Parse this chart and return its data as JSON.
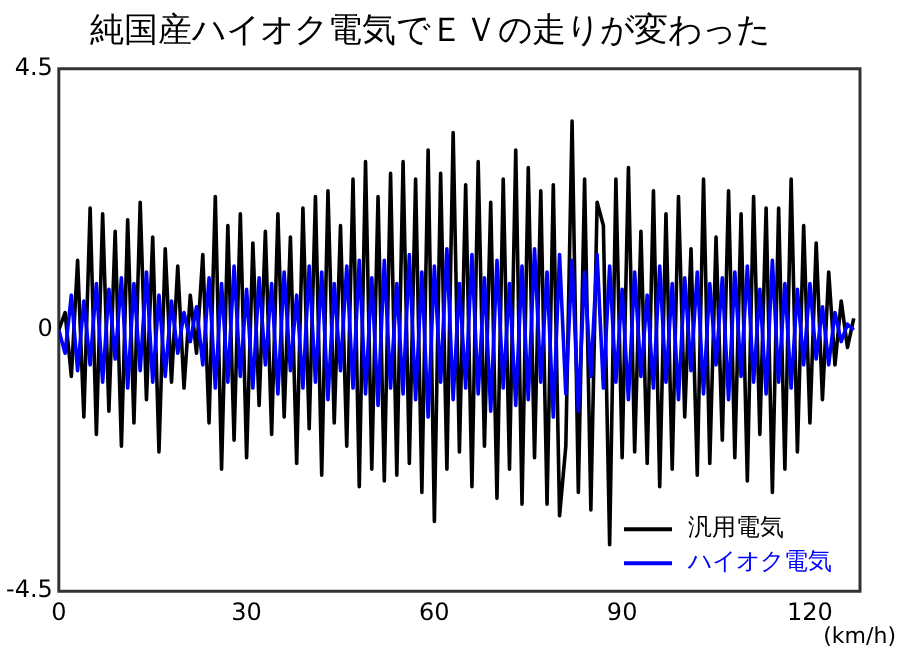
{
  "chart_data": {
    "type": "line",
    "title": "純国産ハイオク電気でＥＶの走りが変わった",
    "xlabel": "(km/h)",
    "x": [
      0,
      1,
      2,
      3,
      4,
      5,
      6,
      7,
      8,
      9,
      10,
      11,
      12,
      13,
      14,
      15,
      16,
      17,
      18,
      19,
      20,
      21,
      22,
      23,
      24,
      25,
      26,
      27,
      28,
      29,
      30,
      31,
      32,
      33,
      34,
      35,
      36,
      37,
      38,
      39,
      40,
      41,
      42,
      43,
      44,
      45,
      46,
      47,
      48,
      49,
      50,
      51,
      52,
      53,
      54,
      55,
      56,
      57,
      58,
      59,
      60,
      61,
      62,
      63,
      64,
      65,
      66,
      67,
      68,
      69,
      70,
      71,
      72,
      73,
      74,
      75,
      76,
      77,
      78,
      79,
      80,
      81,
      82,
      83,
      84,
      85,
      86,
      87,
      88,
      89,
      90,
      91,
      92,
      93,
      94,
      95,
      96,
      97,
      98,
      99,
      100,
      101,
      102,
      103,
      104,
      105,
      106,
      107,
      108,
      109,
      110,
      111,
      112,
      113,
      114,
      115,
      116,
      117,
      118,
      119,
      120,
      121,
      122,
      123,
      124,
      125,
      126,
      127
    ],
    "series": [
      {
        "name": "汎用電気",
        "color": "#000000",
        "values": [
          0,
          0.3,
          -0.8,
          1.2,
          -1.5,
          2.1,
          -1.8,
          2.0,
          -1.4,
          1.7,
          -2.0,
          1.9,
          -1.6,
          2.2,
          -1.2,
          1.6,
          -2.1,
          1.4,
          -0.9,
          1.1,
          -1.0,
          0.6,
          -0.4,
          1.3,
          -1.6,
          2.3,
          -2.4,
          1.8,
          -1.9,
          2.0,
          -2.2,
          1.5,
          -1.3,
          1.7,
          -1.8,
          2.0,
          -1.5,
          1.6,
          -2.3,
          2.1,
          -1.7,
          2.3,
          -2.5,
          2.4,
          -1.6,
          1.8,
          -2.0,
          2.6,
          -2.7,
          2.9,
          -2.4,
          2.3,
          -2.6,
          2.7,
          -2.5,
          2.9,
          -2.3,
          2.6,
          -2.8,
          3.1,
          -3.3,
          2.7,
          -2.4,
          3.4,
          -2.1,
          2.5,
          -2.7,
          2.9,
          -2.0,
          2.2,
          -2.9,
          2.6,
          -2.4,
          3.1,
          -3.0,
          2.8,
          -2.2,
          2.4,
          -3.0,
          2.5,
          -3.2,
          -2.0,
          3.6,
          -2.8,
          2.6,
          -3.1,
          2.2,
          1.8,
          -3.7,
          2.6,
          -2.2,
          2.8,
          -2.1,
          1.7,
          -2.3,
          2.4,
          -2.7,
          2.0,
          -2.4,
          2.3,
          -1.5,
          1.4,
          -2.5,
          2.6,
          -2.3,
          1.6,
          -1.9,
          2.4,
          -2.2,
          2.0,
          -2.6,
          2.3,
          -1.8,
          2.1,
          -2.8,
          2.1,
          -2.4,
          2.6,
          -2.1,
          1.8,
          -1.6,
          1.5,
          -1.2,
          1.0,
          -0.6,
          0.5,
          -0.3,
          0.2
        ]
      },
      {
        "name": "ハイオク電気",
        "color": "#0000ff",
        "values": [
          0,
          -0.4,
          0.6,
          -0.7,
          0.5,
          -0.6,
          0.8,
          -0.9,
          0.7,
          -0.5,
          0.9,
          -1.0,
          0.8,
          -0.7,
          1.0,
          -0.9,
          0.6,
          -0.8,
          0.5,
          -0.4,
          0.3,
          -0.2,
          0.4,
          -0.6,
          0.9,
          -1.0,
          0.8,
          -0.9,
          1.1,
          -0.8,
          0.7,
          -1.0,
          0.9,
          -0.6,
          0.8,
          -1.1,
          1.0,
          -0.7,
          0.6,
          -1.0,
          1.1,
          -0.9,
          1.0,
          -1.2,
          0.8,
          -0.7,
          1.1,
          -1.0,
          1.2,
          -1.1,
          0.9,
          -1.3,
          1.2,
          -1.0,
          0.8,
          -1.1,
          1.3,
          -1.2,
          1.0,
          -1.5,
          1.1,
          -0.9,
          1.4,
          -1.2,
          0.8,
          -1.0,
          1.3,
          -1.1,
          0.9,
          -1.4,
          1.2,
          -1.0,
          0.8,
          -1.3,
          1.1,
          -1.2,
          1.4,
          -0.9,
          1.0,
          -1.5,
          1.3,
          -1.1,
          1.2,
          -1.4,
          1.0,
          -0.8,
          1.3,
          -1.0,
          1.1,
          -0.9,
          0.7,
          -1.2,
          1.0,
          -0.8,
          0.6,
          -1.0,
          1.1,
          -0.9,
          0.8,
          -1.2,
          0.9,
          -0.7,
          1.0,
          -1.1,
          0.8,
          -0.6,
          0.9,
          -1.2,
          1.0,
          -0.8,
          1.1,
          -0.9,
          0.7,
          -1.1,
          1.2,
          -0.9,
          0.8,
          -1.0,
          0.7,
          -0.6,
          0.8,
          -0.5,
          0.4,
          -0.6,
          0.3,
          -0.2,
          0.1,
          0
        ]
      }
    ],
    "xlim": [
      0,
      128
    ],
    "xticks": [
      0,
      30,
      60,
      90,
      120
    ],
    "ylim": [
      -4.5,
      4.5
    ],
    "yticks": [
      -4.5,
      0,
      4.5
    ],
    "grid": false,
    "legend": "bottom right",
    "marker": "none",
    "line_style": "solid"
  }
}
